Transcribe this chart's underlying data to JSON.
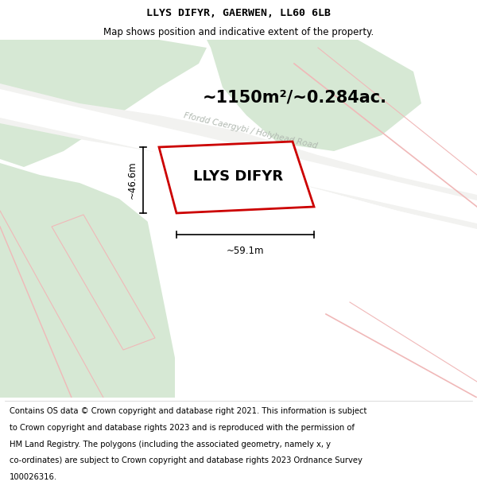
{
  "title_line1": "LLYS DIFYR, GAERWEN, LL60 6LB",
  "title_line2": "Map shows position and indicative extent of the property.",
  "property_label": "LLYS DIFYR",
  "area_label": "~1150m²/~0.284ac.",
  "dim_horizontal": "~59.1m",
  "dim_vertical": "~46.6m",
  "road_label": "Ffordd Caergybi / Holyhead Road",
  "footer_lines": [
    "Contains OS data © Crown copyright and database right 2021. This information is subject",
    "to Crown copyright and database rights 2023 and is reproduced with the permission of",
    "HM Land Registry. The polygons (including the associated geometry, namely x, y",
    "co-ordinates) are subject to Crown copyright and database rights 2023 Ordnance Survey",
    "100026316."
  ],
  "green_color": "#d6e8d4",
  "white": "#ffffff",
  "road_fill": "#f2f2f0",
  "property_edge": "#cc0000",
  "road_label_color": "#b0b8b0",
  "pink_road": "#f0b8b8",
  "dim_color": "#000000",
  "title_fontsize": 9.5,
  "subtitle_fontsize": 8.5,
  "property_label_fontsize": 13,
  "area_fontsize": 15,
  "road_label_fontsize": 7.5,
  "dim_fontsize": 8.5,
  "footer_fontsize": 7.2
}
